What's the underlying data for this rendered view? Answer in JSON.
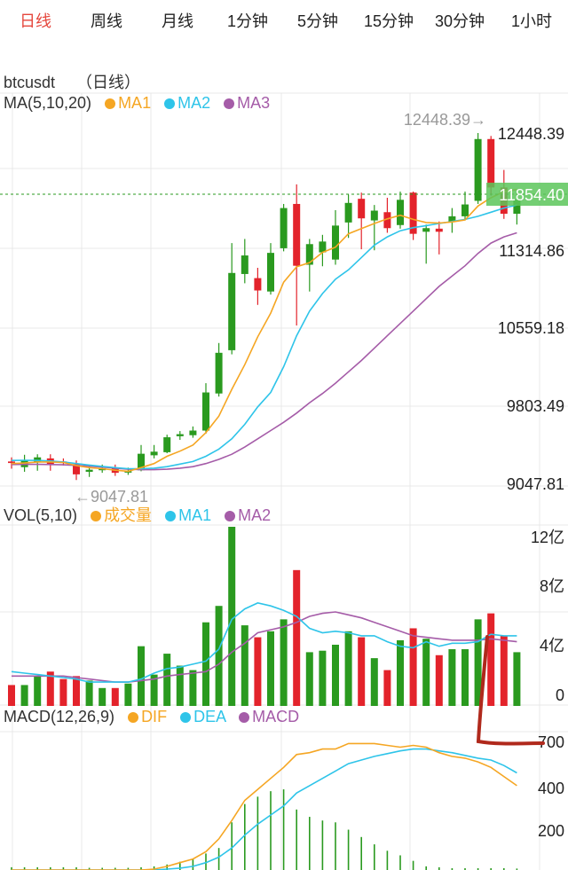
{
  "tabs": [
    {
      "label": "日线",
      "active": true
    },
    {
      "label": "周线",
      "active": false
    },
    {
      "label": "月线",
      "active": false
    },
    {
      "label": "1分钟",
      "active": false
    },
    {
      "label": "5分钟",
      "active": false
    },
    {
      "label": "15分钟",
      "active": false
    },
    {
      "label": "30分钟",
      "active": false
    },
    {
      "label": "1小时",
      "active": false
    }
  ],
  "symbol": {
    "name": "btcusdt",
    "timeframe": "（日线）"
  },
  "legends": {
    "ma": {
      "title": "MA(5,10,20)",
      "items": [
        {
          "label": "MA1",
          "color": "#f5a623"
        },
        {
          "label": "MA2",
          "color": "#2ec4e9"
        },
        {
          "label": "MA3",
          "color": "#a55ca8"
        }
      ]
    },
    "vol": {
      "title": "VOL(5,10)",
      "items": [
        {
          "label": "成交量",
          "color": "#f5a623"
        },
        {
          "label": "MA1",
          "color": "#2ec4e9"
        },
        {
          "label": "MA2",
          "color": "#a55ca8"
        }
      ]
    },
    "macd": {
      "title": "MACD(12,26,9)",
      "items": [
        {
          "label": "DIF",
          "color": "#f5a623"
        },
        {
          "label": "DEA",
          "color": "#2ec4e9"
        },
        {
          "label": "MACD",
          "color": "#a55ca8"
        }
      ]
    }
  },
  "colors": {
    "up": "#2a9a1f",
    "down": "#e3232b",
    "grid": "#e8e8e8",
    "current_price_bg": "#5cc65a",
    "annotation": "#b0291c"
  },
  "chart_data": [
    {
      "type": "candlestick",
      "name": "price",
      "y_ticks": [
        "12448.39",
        "11314.86",
        "10559.18",
        "9803.49",
        "9047.81"
      ],
      "ylim": [
        9047.81,
        12448.39
      ],
      "max_label": "12448.39→",
      "min_label": "←9047.81",
      "current_price": "11854.40",
      "current_value": 11854.4,
      "candles": [
        {
          "o": 9260,
          "c": 9245,
          "h": 9300,
          "l": 9190,
          "dir": "down"
        },
        {
          "o": 9205,
          "c": 9275,
          "h": 9325,
          "l": 9160,
          "dir": "up"
        },
        {
          "o": 9250,
          "c": 9300,
          "h": 9330,
          "l": 9170,
          "dir": "up"
        },
        {
          "o": 9290,
          "c": 9230,
          "h": 9330,
          "l": 9170,
          "dir": "down"
        },
        {
          "o": 9260,
          "c": 9245,
          "h": 9290,
          "l": 9220,
          "dir": "down"
        },
        {
          "o": 9235,
          "c": 9135,
          "h": 9270,
          "l": 9080,
          "dir": "down"
        },
        {
          "o": 9160,
          "c": 9180,
          "h": 9220,
          "l": 9110,
          "dir": "up"
        },
        {
          "o": 9175,
          "c": 9195,
          "h": 9230,
          "l": 9150,
          "dir": "up"
        },
        {
          "o": 9200,
          "c": 9150,
          "h": 9230,
          "l": 9120,
          "dir": "down"
        },
        {
          "o": 9155,
          "c": 9165,
          "h": 9200,
          "l": 9130,
          "dir": "up"
        },
        {
          "o": 9175,
          "c": 9335,
          "h": 9420,
          "l": 9165,
          "dir": "up"
        },
        {
          "o": 9320,
          "c": 9355,
          "h": 9420,
          "l": 9290,
          "dir": "up"
        },
        {
          "o": 9350,
          "c": 9495,
          "h": 9520,
          "l": 9340,
          "dir": "up"
        },
        {
          "o": 9505,
          "c": 9525,
          "h": 9555,
          "l": 9470,
          "dir": "up"
        },
        {
          "o": 9515,
          "c": 9560,
          "h": 9600,
          "l": 9490,
          "dir": "up"
        },
        {
          "o": 9560,
          "c": 9930,
          "h": 10020,
          "l": 9530,
          "dir": "up"
        },
        {
          "o": 9920,
          "c": 10315,
          "h": 10410,
          "l": 9890,
          "dir": "up"
        },
        {
          "o": 10340,
          "c": 11090,
          "h": 11380,
          "l": 10300,
          "dir": "up"
        },
        {
          "o": 11080,
          "c": 11260,
          "h": 11420,
          "l": 10990,
          "dir": "up"
        },
        {
          "o": 11040,
          "c": 10920,
          "h": 11140,
          "l": 10780,
          "dir": "down"
        },
        {
          "o": 10910,
          "c": 11285,
          "h": 11380,
          "l": 10880,
          "dir": "up"
        },
        {
          "o": 11330,
          "c": 11720,
          "h": 11760,
          "l": 11300,
          "dir": "up"
        },
        {
          "o": 11760,
          "c": 11160,
          "h": 11950,
          "l": 10580,
          "dir": "down"
        },
        {
          "o": 11170,
          "c": 11370,
          "h": 11420,
          "l": 10910,
          "dir": "up"
        },
        {
          "o": 11290,
          "c": 11395,
          "h": 11460,
          "l": 11155,
          "dir": "up"
        },
        {
          "o": 11220,
          "c": 11550,
          "h": 11700,
          "l": 11170,
          "dir": "up"
        },
        {
          "o": 11580,
          "c": 11770,
          "h": 11850,
          "l": 11430,
          "dir": "up"
        },
        {
          "o": 11810,
          "c": 11620,
          "h": 11870,
          "l": 11320,
          "dir": "down"
        },
        {
          "o": 11600,
          "c": 11695,
          "h": 11750,
          "l": 11310,
          "dir": "up"
        },
        {
          "o": 11680,
          "c": 11525,
          "h": 11820,
          "l": 11480,
          "dir": "down"
        },
        {
          "o": 11555,
          "c": 11800,
          "h": 11880,
          "l": 11520,
          "dir": "up"
        },
        {
          "o": 11870,
          "c": 11470,
          "h": 11880,
          "l": 11410,
          "dir": "down"
        },
        {
          "o": 11490,
          "c": 11525,
          "h": 11560,
          "l": 11180,
          "dir": "up"
        },
        {
          "o": 11520,
          "c": 11490,
          "h": 11590,
          "l": 11270,
          "dir": "down"
        },
        {
          "o": 11585,
          "c": 11640,
          "h": 11720,
          "l": 11480,
          "dir": "up"
        },
        {
          "o": 11640,
          "c": 11755,
          "h": 11880,
          "l": 11600,
          "dir": "up"
        },
        {
          "o": 11790,
          "c": 12390,
          "h": 12448.39,
          "l": 11760,
          "dir": "up"
        },
        {
          "o": 12390,
          "c": 11920,
          "h": 12420,
          "l": 11840,
          "dir": "down"
        },
        {
          "o": 11920,
          "c": 11665,
          "h": 12090,
          "l": 11615,
          "dir": "down"
        },
        {
          "o": 11665,
          "c": 11800,
          "h": 11890,
          "l": 11560,
          "dir": "up"
        }
      ],
      "ma1": [
        9240,
        9245,
        9255,
        9255,
        9250,
        9220,
        9200,
        9190,
        9175,
        9165,
        9200,
        9240,
        9310,
        9360,
        9420,
        9540,
        9700,
        9960,
        10200,
        10470,
        10700,
        11000,
        11150,
        11190,
        11290,
        11340,
        11470,
        11520,
        11570,
        11615,
        11650,
        11610,
        11580,
        11575,
        11585,
        11605,
        11740,
        11820,
        11880,
        11900
      ],
      "ma2": [
        9270,
        9272,
        9270,
        9265,
        9255,
        9240,
        9225,
        9212,
        9200,
        9190,
        9190,
        9195,
        9210,
        9235,
        9260,
        9310,
        9380,
        9480,
        9620,
        9790,
        9930,
        10180,
        10480,
        10720,
        10890,
        11030,
        11120,
        11240,
        11360,
        11440,
        11500,
        11530,
        11550,
        11570,
        11590,
        11610,
        11640,
        11680,
        11720,
        11750
      ],
      "ma3": [
        9230,
        9232,
        9232,
        9230,
        9228,
        9222,
        9215,
        9205,
        9195,
        9185,
        9180,
        9180,
        9185,
        9195,
        9210,
        9240,
        9280,
        9330,
        9400,
        9480,
        9560,
        9640,
        9730,
        9830,
        9920,
        10020,
        10130,
        10240,
        10360,
        10480,
        10600,
        10720,
        10840,
        10960,
        11060,
        11160,
        11280,
        11380,
        11440,
        11480
      ]
    },
    {
      "type": "bar",
      "name": "volume",
      "y_ticks": [
        "12亿",
        "8亿",
        "4亿",
        "0"
      ],
      "ylim": [
        0,
        12
      ],
      "values": [
        1.4,
        1.4,
        2.0,
        2.3,
        1.8,
        2.0,
        1.7,
        1.2,
        1.2,
        1.5,
        4.0,
        2.1,
        3.5,
        2.7,
        2.4,
        5.6,
        6.7,
        12.0,
        5.4,
        4.6,
        5.0,
        5.8,
        9.1,
        3.6,
        3.7,
        4.1,
        5.0,
        4.6,
        3.2,
        2.4,
        4.4,
        5.2,
        4.5,
        3.4,
        3.8,
        3.8,
        5.8,
        6.2,
        4.7,
        3.6
      ],
      "ma1": [
        2.3,
        2.2,
        2.1,
        2.0,
        1.9,
        1.8,
        1.6,
        1.6,
        1.6,
        1.6,
        1.8,
        2.2,
        2.5,
        2.6,
        2.8,
        3.0,
        3.8,
        5.8,
        6.5,
        6.9,
        6.7,
        6.4,
        6.0,
        5.2,
        4.9,
        5.0,
        4.9,
        4.7,
        4.7,
        4.3,
        4.0,
        3.9,
        4.3,
        4.0,
        4.2,
        4.2,
        4.3,
        4.8,
        4.7,
        4.7
      ],
      "ma2": [
        2.0,
        2.0,
        2.0,
        2.0,
        2.0,
        1.9,
        1.8,
        1.7,
        1.6,
        1.6,
        1.7,
        1.8,
        2.0,
        2.1,
        2.2,
        2.3,
        2.8,
        3.6,
        4.2,
        4.9,
        5.1,
        5.3,
        5.6,
        6.0,
        6.2,
        6.3,
        6.1,
        5.9,
        5.6,
        5.3,
        5.0,
        4.7,
        4.6,
        4.5,
        4.4,
        4.4,
        4.4,
        4.5,
        4.4,
        4.3
      ]
    },
    {
      "type": "bar",
      "name": "macd",
      "y_ticks": [
        "700",
        "400",
        "200"
      ],
      "ylim": [
        0,
        750
      ],
      "hist": [
        15,
        15,
        15,
        15,
        15,
        15,
        12,
        12,
        12,
        12,
        15,
        20,
        30,
        45,
        60,
        90,
        120,
        260,
        360,
        400,
        430,
        440,
        330,
        290,
        270,
        260,
        220,
        180,
        140,
        105,
        80,
        50,
        20,
        15,
        10,
        10,
        10,
        10,
        10,
        8
      ],
      "dif": [
        0,
        0,
        0,
        0,
        0,
        0,
        0,
        0,
        0,
        0,
        0,
        5,
        20,
        40,
        60,
        100,
        170,
        270,
        380,
        440,
        500,
        560,
        630,
        640,
        660,
        660,
        690,
        690,
        690,
        680,
        670,
        680,
        670,
        640,
        620,
        610,
        590,
        560,
        510,
        460
      ],
      "dea": [
        0,
        0,
        0,
        0,
        0,
        0,
        0,
        0,
        0,
        0,
        0,
        0,
        5,
        10,
        20,
        40,
        70,
        120,
        190,
        250,
        300,
        350,
        420,
        460,
        500,
        540,
        580,
        600,
        620,
        635,
        650,
        660,
        660,
        650,
        640,
        625,
        610,
        600,
        570,
        530
      ]
    }
  ],
  "annotation": {
    "type": "hand-drawn-line",
    "color": "#b0291c"
  }
}
